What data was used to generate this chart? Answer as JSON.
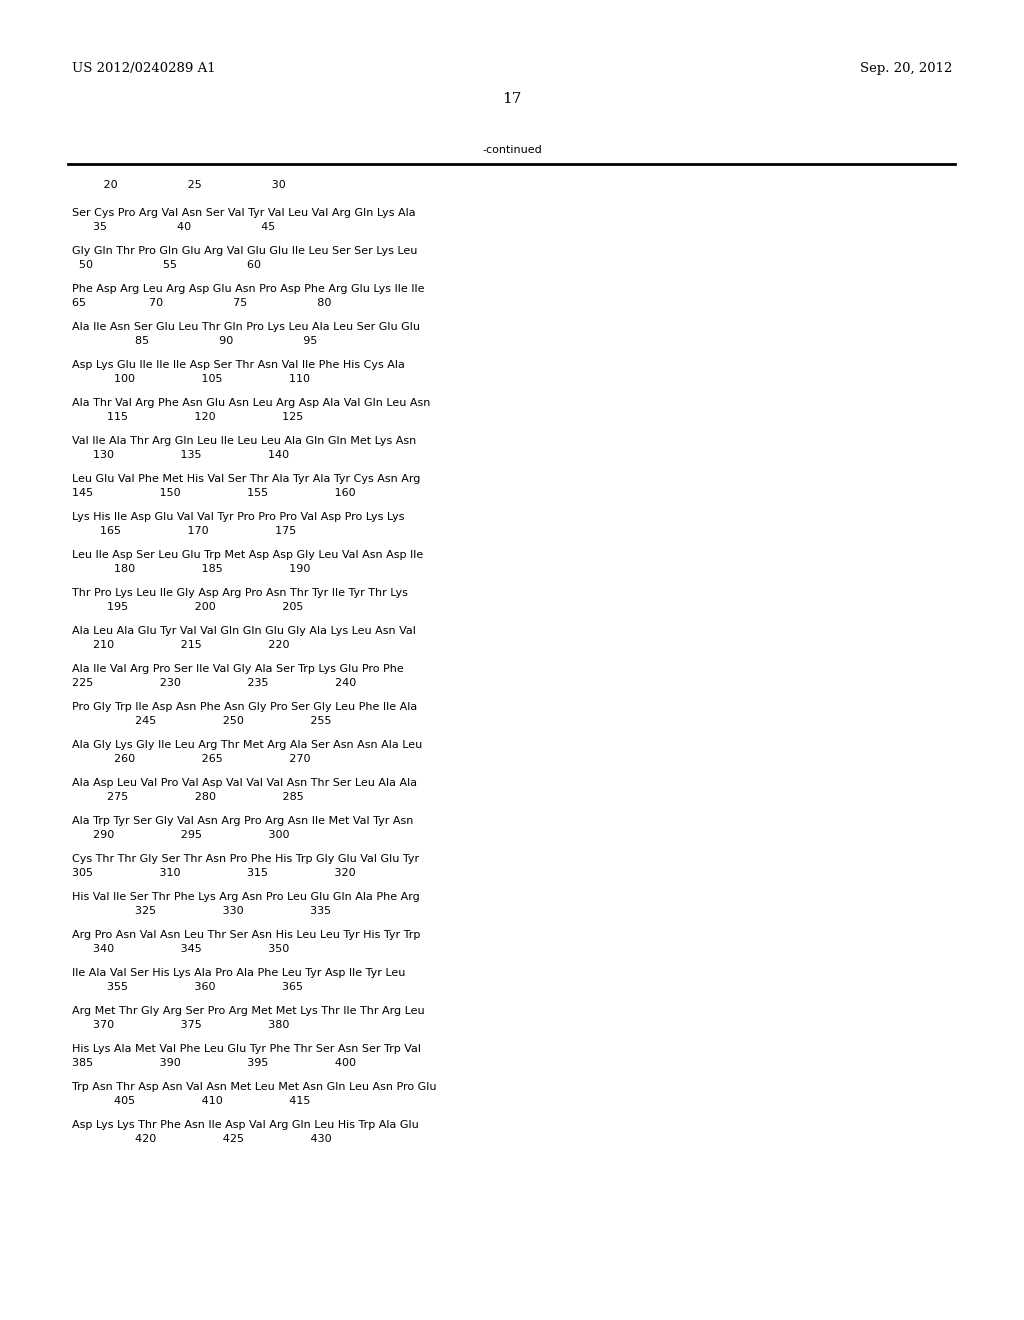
{
  "header_left": "US 2012/0240289 A1",
  "header_right": "Sep. 20, 2012",
  "page_number": "17",
  "continued_label": "-continued",
  "ruler_line": "         20                    25                    30",
  "sequence_blocks": [
    {
      "aa": "Ser Cys Pro Arg Val Asn Ser Val Tyr Val Leu Val Arg Gln Lys Ala",
      "num": "      35                    40                    45"
    },
    {
      "aa": "Gly Gln Thr Pro Gln Glu Arg Val Glu Glu Ile Leu Ser Ser Lys Leu",
      "num": "  50                    55                    60"
    },
    {
      "aa": "Phe Asp Arg Leu Arg Asp Glu Asn Pro Asp Phe Arg Glu Lys Ile Ile",
      "num": "65                  70                    75                    80"
    },
    {
      "aa": "Ala Ile Asn Ser Glu Leu Thr Gln Pro Lys Leu Ala Leu Ser Glu Glu",
      "num": "                  85                    90                    95"
    },
    {
      "aa": "Asp Lys Glu Ile Ile Ile Asp Ser Thr Asn Val Ile Phe His Cys Ala",
      "num": "            100                   105                   110"
    },
    {
      "aa": "Ala Thr Val Arg Phe Asn Glu Asn Leu Arg Asp Ala Val Gln Leu Asn",
      "num": "          115                   120                   125"
    },
    {
      "aa": "Val Ile Ala Thr Arg Gln Leu Ile Leu Leu Ala Gln Gln Met Lys Asn",
      "num": "      130                   135                   140"
    },
    {
      "aa": "Leu Glu Val Phe Met His Val Ser Thr Ala Tyr Ala Tyr Cys Asn Arg",
      "num": "145                   150                   155                   160"
    },
    {
      "aa": "Lys His Ile Asp Glu Val Val Tyr Pro Pro Pro Val Asp Pro Lys Lys",
      "num": "        165                   170                   175"
    },
    {
      "aa": "Leu Ile Asp Ser Leu Glu Trp Met Asp Asp Gly Leu Val Asn Asp Ile",
      "num": "            180                   185                   190"
    },
    {
      "aa": "Thr Pro Lys Leu Ile Gly Asp Arg Pro Asn Thr Tyr Ile Tyr Thr Lys",
      "num": "          195                   200                   205"
    },
    {
      "aa": "Ala Leu Ala Glu Tyr Val Val Gln Gln Glu Gly Ala Lys Leu Asn Val",
      "num": "      210                   215                   220"
    },
    {
      "aa": "Ala Ile Val Arg Pro Ser Ile Val Gly Ala Ser Trp Lys Glu Pro Phe",
      "num": "225                   230                   235                   240"
    },
    {
      "aa": "Pro Gly Trp Ile Asp Asn Phe Asn Gly Pro Ser Gly Leu Phe Ile Ala",
      "num": "                  245                   250                   255"
    },
    {
      "aa": "Ala Gly Lys Gly Ile Leu Arg Thr Met Arg Ala Ser Asn Asn Ala Leu",
      "num": "            260                   265                   270"
    },
    {
      "aa": "Ala Asp Leu Val Pro Val Asp Val Val Val Asn Thr Ser Leu Ala Ala",
      "num": "          275                   280                   285"
    },
    {
      "aa": "Ala Trp Tyr Ser Gly Val Asn Arg Pro Arg Asn Ile Met Val Tyr Asn",
      "num": "      290                   295                   300"
    },
    {
      "aa": "Cys Thr Thr Gly Ser Thr Asn Pro Phe His Trp Gly Glu Val Glu Tyr",
      "num": "305                   310                   315                   320"
    },
    {
      "aa": "His Val Ile Ser Thr Phe Lys Arg Asn Pro Leu Glu Gln Ala Phe Arg",
      "num": "                  325                   330                   335"
    },
    {
      "aa": "Arg Pro Asn Val Asn Leu Thr Ser Asn His Leu Leu Tyr His Tyr Trp",
      "num": "      340                   345                   350"
    },
    {
      "aa": "Ile Ala Val Ser His Lys Ala Pro Ala Phe Leu Tyr Asp Ile Tyr Leu",
      "num": "          355                   360                   365"
    },
    {
      "aa": "Arg Met Thr Gly Arg Ser Pro Arg Met Met Lys Thr Ile Thr Arg Leu",
      "num": "      370                   375                   380"
    },
    {
      "aa": "His Lys Ala Met Val Phe Leu Glu Tyr Phe Thr Ser Asn Ser Trp Val",
      "num": "385                   390                   395                   400"
    },
    {
      "aa": "Trp Asn Thr Asp Asn Val Asn Met Leu Met Asn Gln Leu Asn Pro Glu",
      "num": "            405                   410                   415"
    },
    {
      "aa": "Asp Lys Lys Thr Phe Asn Ile Asp Val Arg Gln Leu His Trp Ala Glu",
      "num": "                  420                   425                   430"
    }
  ],
  "font_size_header": 9.5,
  "font_size_page": 11,
  "font_size_body": 8.0
}
